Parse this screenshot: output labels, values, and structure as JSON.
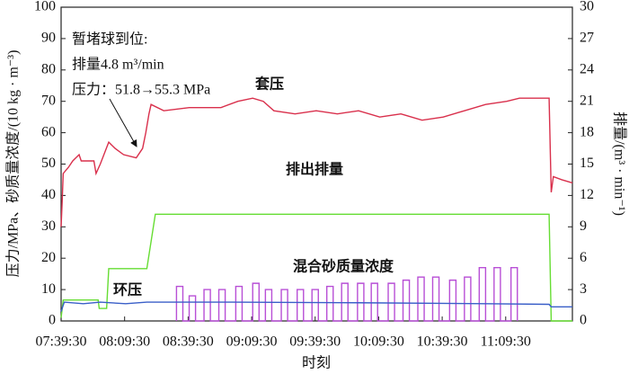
{
  "chart_data": {
    "type": "line",
    "xlabel": "时刻",
    "ylabel": "压力/MPa、砂质量浓度/(10 kg · m⁻³)",
    "y2label": "排量/(m³ · min⁻¹)",
    "annotation": [
      "暂堵球到位:",
      "排量4.8 m³/min",
      "压力：51.8→55.3 MPa"
    ],
    "xlim": [
      "07:39:30",
      "11:41:00"
    ],
    "xticks": [
      "07:39:30",
      "08:09:30",
      "08:39:30",
      "09:09:30",
      "09:39:30",
      "10:09:30",
      "10:39:30",
      "11:09:30"
    ],
    "ylim": [
      0,
      100
    ],
    "yticks": [
      0,
      10,
      20,
      30,
      40,
      50,
      60,
      70,
      80,
      90,
      100
    ],
    "y2lim": [
      0,
      30
    ],
    "y2ticks": [
      0,
      3,
      6,
      9,
      12,
      15,
      18,
      21,
      24,
      27,
      30
    ],
    "series": [
      {
        "name": "套压",
        "color": "#d9304c",
        "x": [
          "07:39:30",
          "07:40:00",
          "07:40:30",
          "07:43:00",
          "07:45:00",
          "07:48:00",
          "07:49:00",
          "07:55:00",
          "07:56:00",
          "07:58:00",
          "08:02:00",
          "08:05:00",
          "08:09:00",
          "08:15:00",
          "08:18:00",
          "08:19:30",
          "08:21:00",
          "08:22:00",
          "08:28:00",
          "08:40:00",
          "08:55:00",
          "09:03:00",
          "09:10:00",
          "09:15:00",
          "09:20:00",
          "09:30:00",
          "09:40:00",
          "09:50:00",
          "10:00:00",
          "10:10:00",
          "10:20:00",
          "10:30:00",
          "10:40:00",
          "10:50:00",
          "11:00:00",
          "11:10:00",
          "11:16:00",
          "11:30:00",
          "11:31:00",
          "11:32:00",
          "11:36:00",
          "11:41:00"
        ],
        "values": [
          30,
          38,
          47,
          49,
          51,
          53,
          51,
          51,
          47,
          50,
          57,
          55,
          53,
          52,
          55,
          60,
          66,
          69,
          67,
          68,
          68,
          70,
          71,
          70,
          67,
          66,
          67,
          66,
          67,
          65,
          66,
          64,
          65,
          67,
          69,
          70,
          71,
          71,
          41,
          46,
          45,
          44
        ]
      },
      {
        "name": "排出排量",
        "color": "#66dd33",
        "axis": "y2",
        "x": [
          "07:39:30",
          "07:40:30",
          "07:57:00",
          "07:57:30",
          "08:01:00",
          "08:02:00",
          "08:20:00",
          "08:24:00",
          "11:30:00",
          "11:31:00",
          "11:41:00"
        ],
        "values": [
          0.3,
          2.0,
          2.0,
          1.2,
          1.2,
          5.0,
          5.0,
          10.2,
          10.2,
          0,
          0
        ]
      },
      {
        "name": "混合砂质量浓度",
        "color": "#b84fd6",
        "x": [
          "08:34:00",
          "08:34:00",
          "08:37:00",
          "08:37:00",
          "08:40:00",
          "08:40:00",
          "08:43:00",
          "08:43:00",
          "08:47:00",
          "08:47:00",
          "08:50:00",
          "08:50:00",
          "08:54:00",
          "08:54:00",
          "08:57:00",
          "08:57:00",
          "09:02:00",
          "09:02:00",
          "09:05:00",
          "09:05:00",
          "09:10:00",
          "09:10:00",
          "09:13:00",
          "09:13:00",
          "09:16:00",
          "09:16:00",
          "09:19:00",
          "09:19:00",
          "09:23:30",
          "09:23:30",
          "09:26:30",
          "09:26:30",
          "09:31:00",
          "09:31:00",
          "09:34:00",
          "09:34:00",
          "09:38:00",
          "09:38:00",
          "09:41:00",
          "09:41:00",
          "09:45:00",
          "09:45:00",
          "09:48:00",
          "09:48:00",
          "09:52:00",
          "09:52:00",
          "09:55:00",
          "09:55:00",
          "09:59:30",
          "09:59:30",
          "10:02:30",
          "10:02:30",
          "10:06:00",
          "10:06:00",
          "10:09:00",
          "10:09:00",
          "10:14:00",
          "10:14:00",
          "10:17:00",
          "10:17:00",
          "10:21:00",
          "10:21:00",
          "10:24:00",
          "10:24:00",
          "10:28:00",
          "10:28:00",
          "10:31:00",
          "10:31:00",
          "10:35:00",
          "10:35:00",
          "10:38:00",
          "10:38:00",
          "10:43:00",
          "10:43:00",
          "10:46:00",
          "10:46:00",
          "10:50:00",
          "10:50:00",
          "10:53:00",
          "10:53:00",
          "10:57:00",
          "10:57:00",
          "11:00:00",
          "11:00:00",
          "11:04:00",
          "11:04:00",
          "11:07:00",
          "11:07:00",
          "11:12:00",
          "11:12:00",
          "11:15:00",
          "11:15:00"
        ],
        "values": [
          0,
          11,
          11,
          0,
          0,
          8,
          8,
          0,
          0,
          10,
          10,
          0,
          0,
          10,
          10,
          0,
          0,
          11,
          11,
          0,
          0,
          12,
          12,
          0,
          0,
          10,
          10,
          0,
          0,
          10,
          10,
          0,
          0,
          10,
          10,
          0,
          0,
          10,
          10,
          0,
          0,
          11,
          11,
          0,
          0,
          12,
          12,
          0,
          0,
          12,
          12,
          0,
          0,
          12,
          12,
          0,
          0,
          12,
          12,
          0,
          0,
          13,
          13,
          0,
          0,
          14,
          14,
          0,
          0,
          14,
          14,
          0,
          0,
          13,
          13,
          0,
          0,
          14,
          14,
          0,
          0,
          17,
          17,
          0,
          0,
          17,
          17,
          0,
          0,
          17,
          17,
          0
        ]
      },
      {
        "name": "环压",
        "color": "#3a5fc8",
        "x": [
          "07:39:30",
          "07:41:00",
          "07:50:00",
          "07:58:00",
          "08:10:00",
          "08:20:00",
          "09:00:00",
          "10:00:00",
          "11:00:00",
          "11:30:00",
          "11:31:00",
          "11:41:00"
        ],
        "values": [
          3,
          6,
          5.5,
          6,
          5.5,
          6,
          6,
          5.8,
          5.5,
          5.3,
          4.5,
          4.5
        ]
      }
    ]
  }
}
